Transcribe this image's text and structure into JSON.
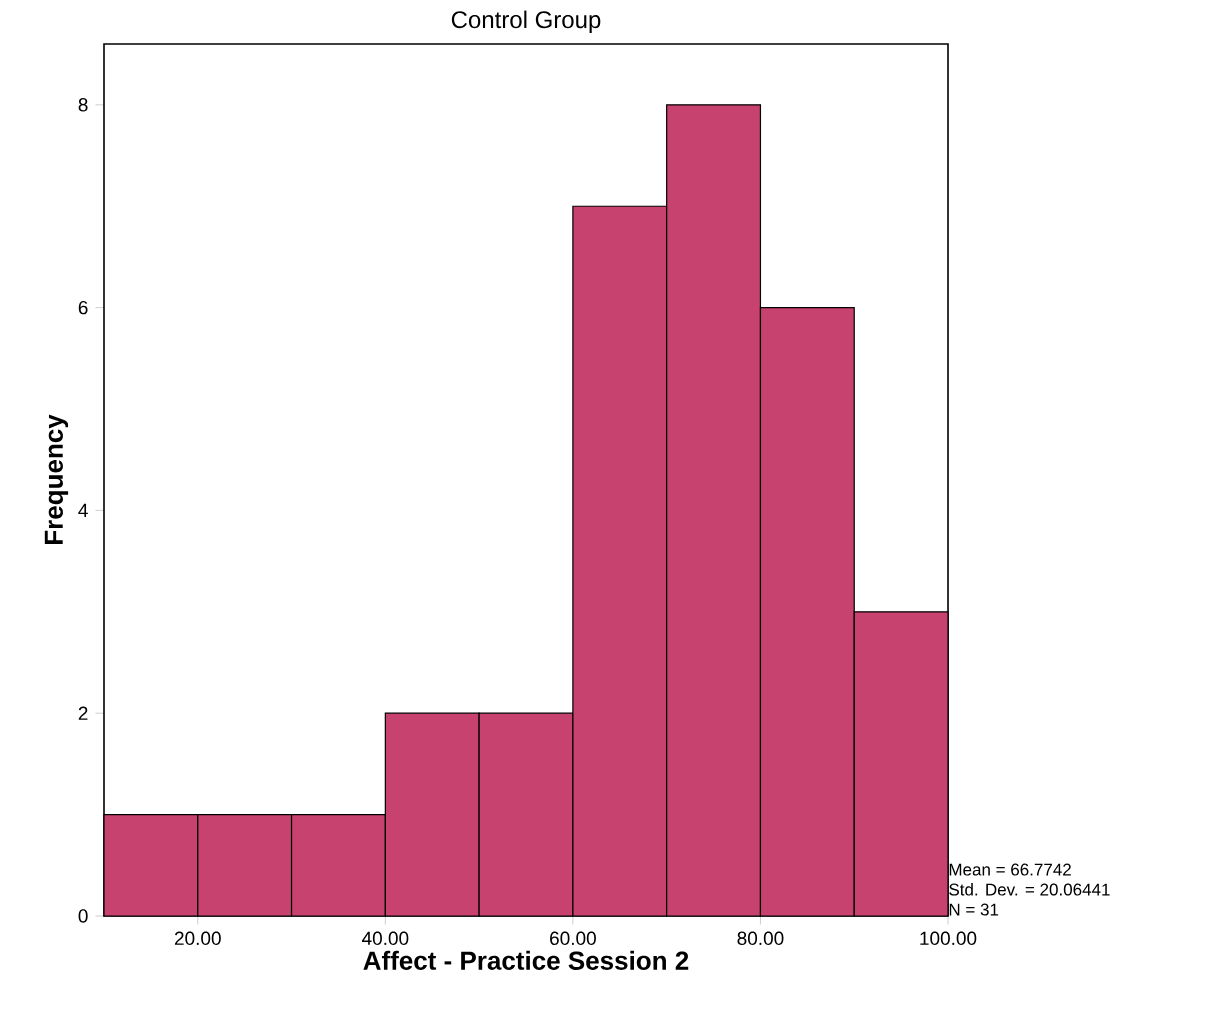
{
  "chart_data": {
    "type": "histogram",
    "title": "Control Group",
    "xlabel": "Affect - Practice Session 2",
    "ylabel": "Frequency",
    "bins": [
      10,
      20,
      30,
      40,
      50,
      60,
      70,
      80,
      90,
      100
    ],
    "values": [
      1,
      1,
      1,
      2,
      2,
      7,
      8,
      6,
      3
    ],
    "color": "#c8426f",
    "xlim": [
      10,
      100
    ],
    "xticks": [
      {
        "value": 20,
        "label": "20.00"
      },
      {
        "value": 40,
        "label": "40.00"
      },
      {
        "value": 60,
        "label": "60.00"
      },
      {
        "value": 80,
        "label": "80.00"
      },
      {
        "value": 100,
        "label": "100.00"
      }
    ],
    "ylim": [
      0,
      8.6
    ],
    "yticks": [
      0,
      2,
      4,
      6,
      8
    ],
    "annotations": [
      "Mean = 66.7742",
      "Std. Dev. = 20.06441",
      "N = 31"
    ]
  }
}
